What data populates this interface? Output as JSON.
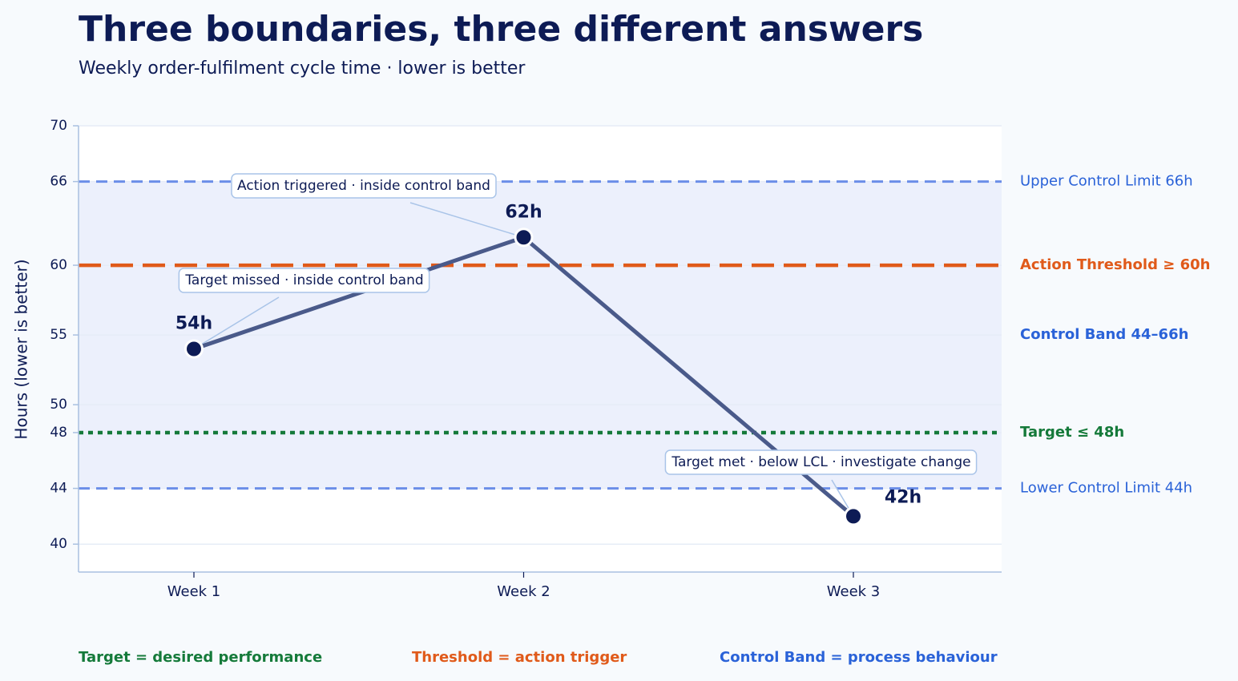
{
  "chart_data": {
    "type": "line",
    "title": "Three boundaries, three different answers",
    "subtitle": "Weekly order-fulfilment cycle time · lower is better",
    "y_label": "Hours (lower is better)",
    "categories": [
      "Week 1",
      "Week 2",
      "Week 3"
    ],
    "values": [
      54,
      62,
      42
    ],
    "value_labels": [
      "54h",
      "62h",
      "42h"
    ],
    "color": "#4a5a8a",
    "marker_color": "#0d1b55",
    "ylim": [
      38,
      70
    ],
    "yticks": [
      40,
      44,
      48,
      50,
      55,
      60,
      66,
      70
    ],
    "grid": true,
    "band": {
      "range": [
        44,
        66
      ],
      "label": "Control Band 44–66h",
      "color": "#2a62d8",
      "fill": "#ecf0fc"
    },
    "reference_lines": [
      {
        "value": 66,
        "label": "Upper Control Limit 66h",
        "color": "#6b8ee8",
        "label_color": "#2a62d8",
        "style": "dashed",
        "bold": false
      },
      {
        "value": 60,
        "label": "Action Threshold ≥ 60h",
        "color": "#e05a1a",
        "label_color": "#e05a1a",
        "style": "long-dashed",
        "bold": true
      },
      {
        "value": 48,
        "label": "Target ≤ 48h",
        "color": "#157a3a",
        "label_color": "#157a3a",
        "style": "dotted",
        "bold": true
      },
      {
        "value": 44,
        "label": "Lower Control Limit 44h",
        "color": "#6b8ee8",
        "label_color": "#2a62d8",
        "style": "dashed",
        "bold": false
      }
    ],
    "annotations": [
      "Target missed · inside control band",
      "Action triggered · inside control band",
      "Target met · below LCL · investigate change"
    ],
    "footer": [
      {
        "text": "Target = desired performance",
        "color": "#157a3a"
      },
      {
        "text": "Threshold = action trigger",
        "color": "#e05a1a"
      },
      {
        "text": "Control Band = process behaviour",
        "color": "#2a62d8"
      }
    ]
  }
}
